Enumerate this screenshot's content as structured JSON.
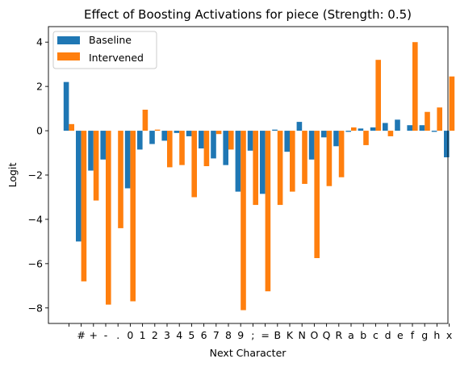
{
  "chart_data": {
    "type": "bar",
    "title": "Effect of Boosting Activations for piece (Strength: 0.5)",
    "xlabel": "Next Character",
    "ylabel": "Logit",
    "categories": [
      "",
      "#",
      "+",
      "-",
      ".",
      "0",
      "1",
      "2",
      "3",
      "4",
      "5",
      "6",
      "7",
      "8",
      "9",
      ";",
      "=",
      "B",
      "K",
      "N",
      "O",
      "Q",
      "R",
      "a",
      "b",
      "c",
      "d",
      "e",
      "f",
      "g",
      "h",
      "x"
    ],
    "series": [
      {
        "name": "Baseline",
        "color": "#1f77b4",
        "values": [
          2.2,
          -5.0,
          -1.8,
          -1.3,
          0.0,
          -2.6,
          -0.85,
          -0.6,
          -0.45,
          -0.1,
          -0.25,
          -0.8,
          -1.25,
          -1.55,
          -2.75,
          -0.9,
          -2.85,
          0.05,
          -0.95,
          0.4,
          -1.3,
          -0.3,
          -0.7,
          -0.05,
          0.1,
          0.15,
          0.35,
          0.5,
          0.25,
          0.25,
          -0.05,
          -1.2
        ]
      },
      {
        "name": "Intervened",
        "color": "#ff7f0e",
        "values": [
          0.3,
          -6.8,
          -3.15,
          -7.85,
          -4.4,
          -7.7,
          0.95,
          0.05,
          -1.65,
          -1.55,
          -3.0,
          -1.6,
          -0.15,
          -0.85,
          -8.1,
          -3.35,
          -7.25,
          -3.35,
          -2.75,
          -2.4,
          -5.75,
          -2.5,
          -2.1,
          0.15,
          -0.65,
          3.2,
          -0.25,
          0.0,
          4.0,
          0.85,
          1.05,
          2.45
        ]
      }
    ],
    "ylim": [
      -8.7,
      4.7
    ],
    "yticks": [
      4,
      2,
      0,
      -2,
      -4,
      -6,
      -8
    ],
    "ytick_labels": [
      "4",
      "2",
      "0",
      "−2",
      "−4",
      "−6",
      "−8"
    ],
    "grid": false,
    "legend_position": "top-left"
  }
}
